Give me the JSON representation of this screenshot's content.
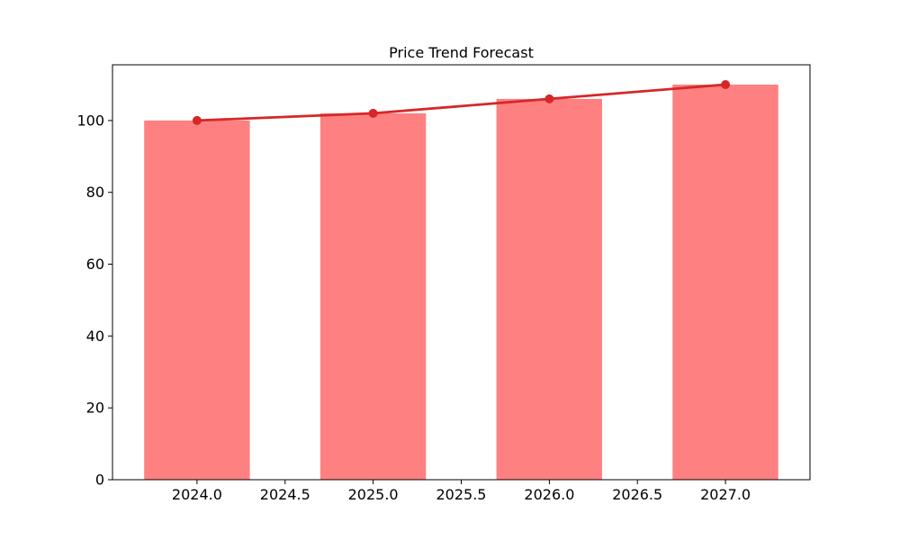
{
  "window": {
    "background": "#ffffff"
  },
  "chart_data": {
    "type": "bar",
    "title": "Price Trend Forecast",
    "x": [
      2024,
      2025,
      2026,
      2027
    ],
    "categories": [
      "2024",
      "2025",
      "2026",
      "2027"
    ],
    "series": [
      {
        "name": "price-bars",
        "type": "bar",
        "values": [
          100,
          102,
          106,
          110
        ],
        "color": "#ff8080"
      },
      {
        "name": "trend-line",
        "type": "line",
        "values": [
          100,
          102,
          106,
          110
        ],
        "color": "#d62728",
        "marker": "circle",
        "marker_radius": 5,
        "line_width": 2.8
      }
    ],
    "bar_width": 0.6,
    "xlim": [
      2023.52,
      2027.48
    ],
    "ylim": [
      0,
      115.5
    ],
    "x_ticks": {
      "values": [
        2024,
        2024.5,
        2025,
        2025.5,
        2026,
        2026.5,
        2027
      ],
      "labels": [
        "2024.0",
        "2024.5",
        "2025.0",
        "2025.5",
        "2026.0",
        "2026.5",
        "2027.0"
      ]
    },
    "y_ticks": {
      "values": [
        0,
        20,
        40,
        60,
        80,
        100
      ],
      "labels": [
        "0",
        "20",
        "40",
        "60",
        "80",
        "100"
      ]
    },
    "grid": false,
    "legend": false,
    "xlabel": "",
    "ylabel": "",
    "axis_color": "#000000",
    "text_color": "#000000",
    "plot_background": "#ffffff"
  }
}
